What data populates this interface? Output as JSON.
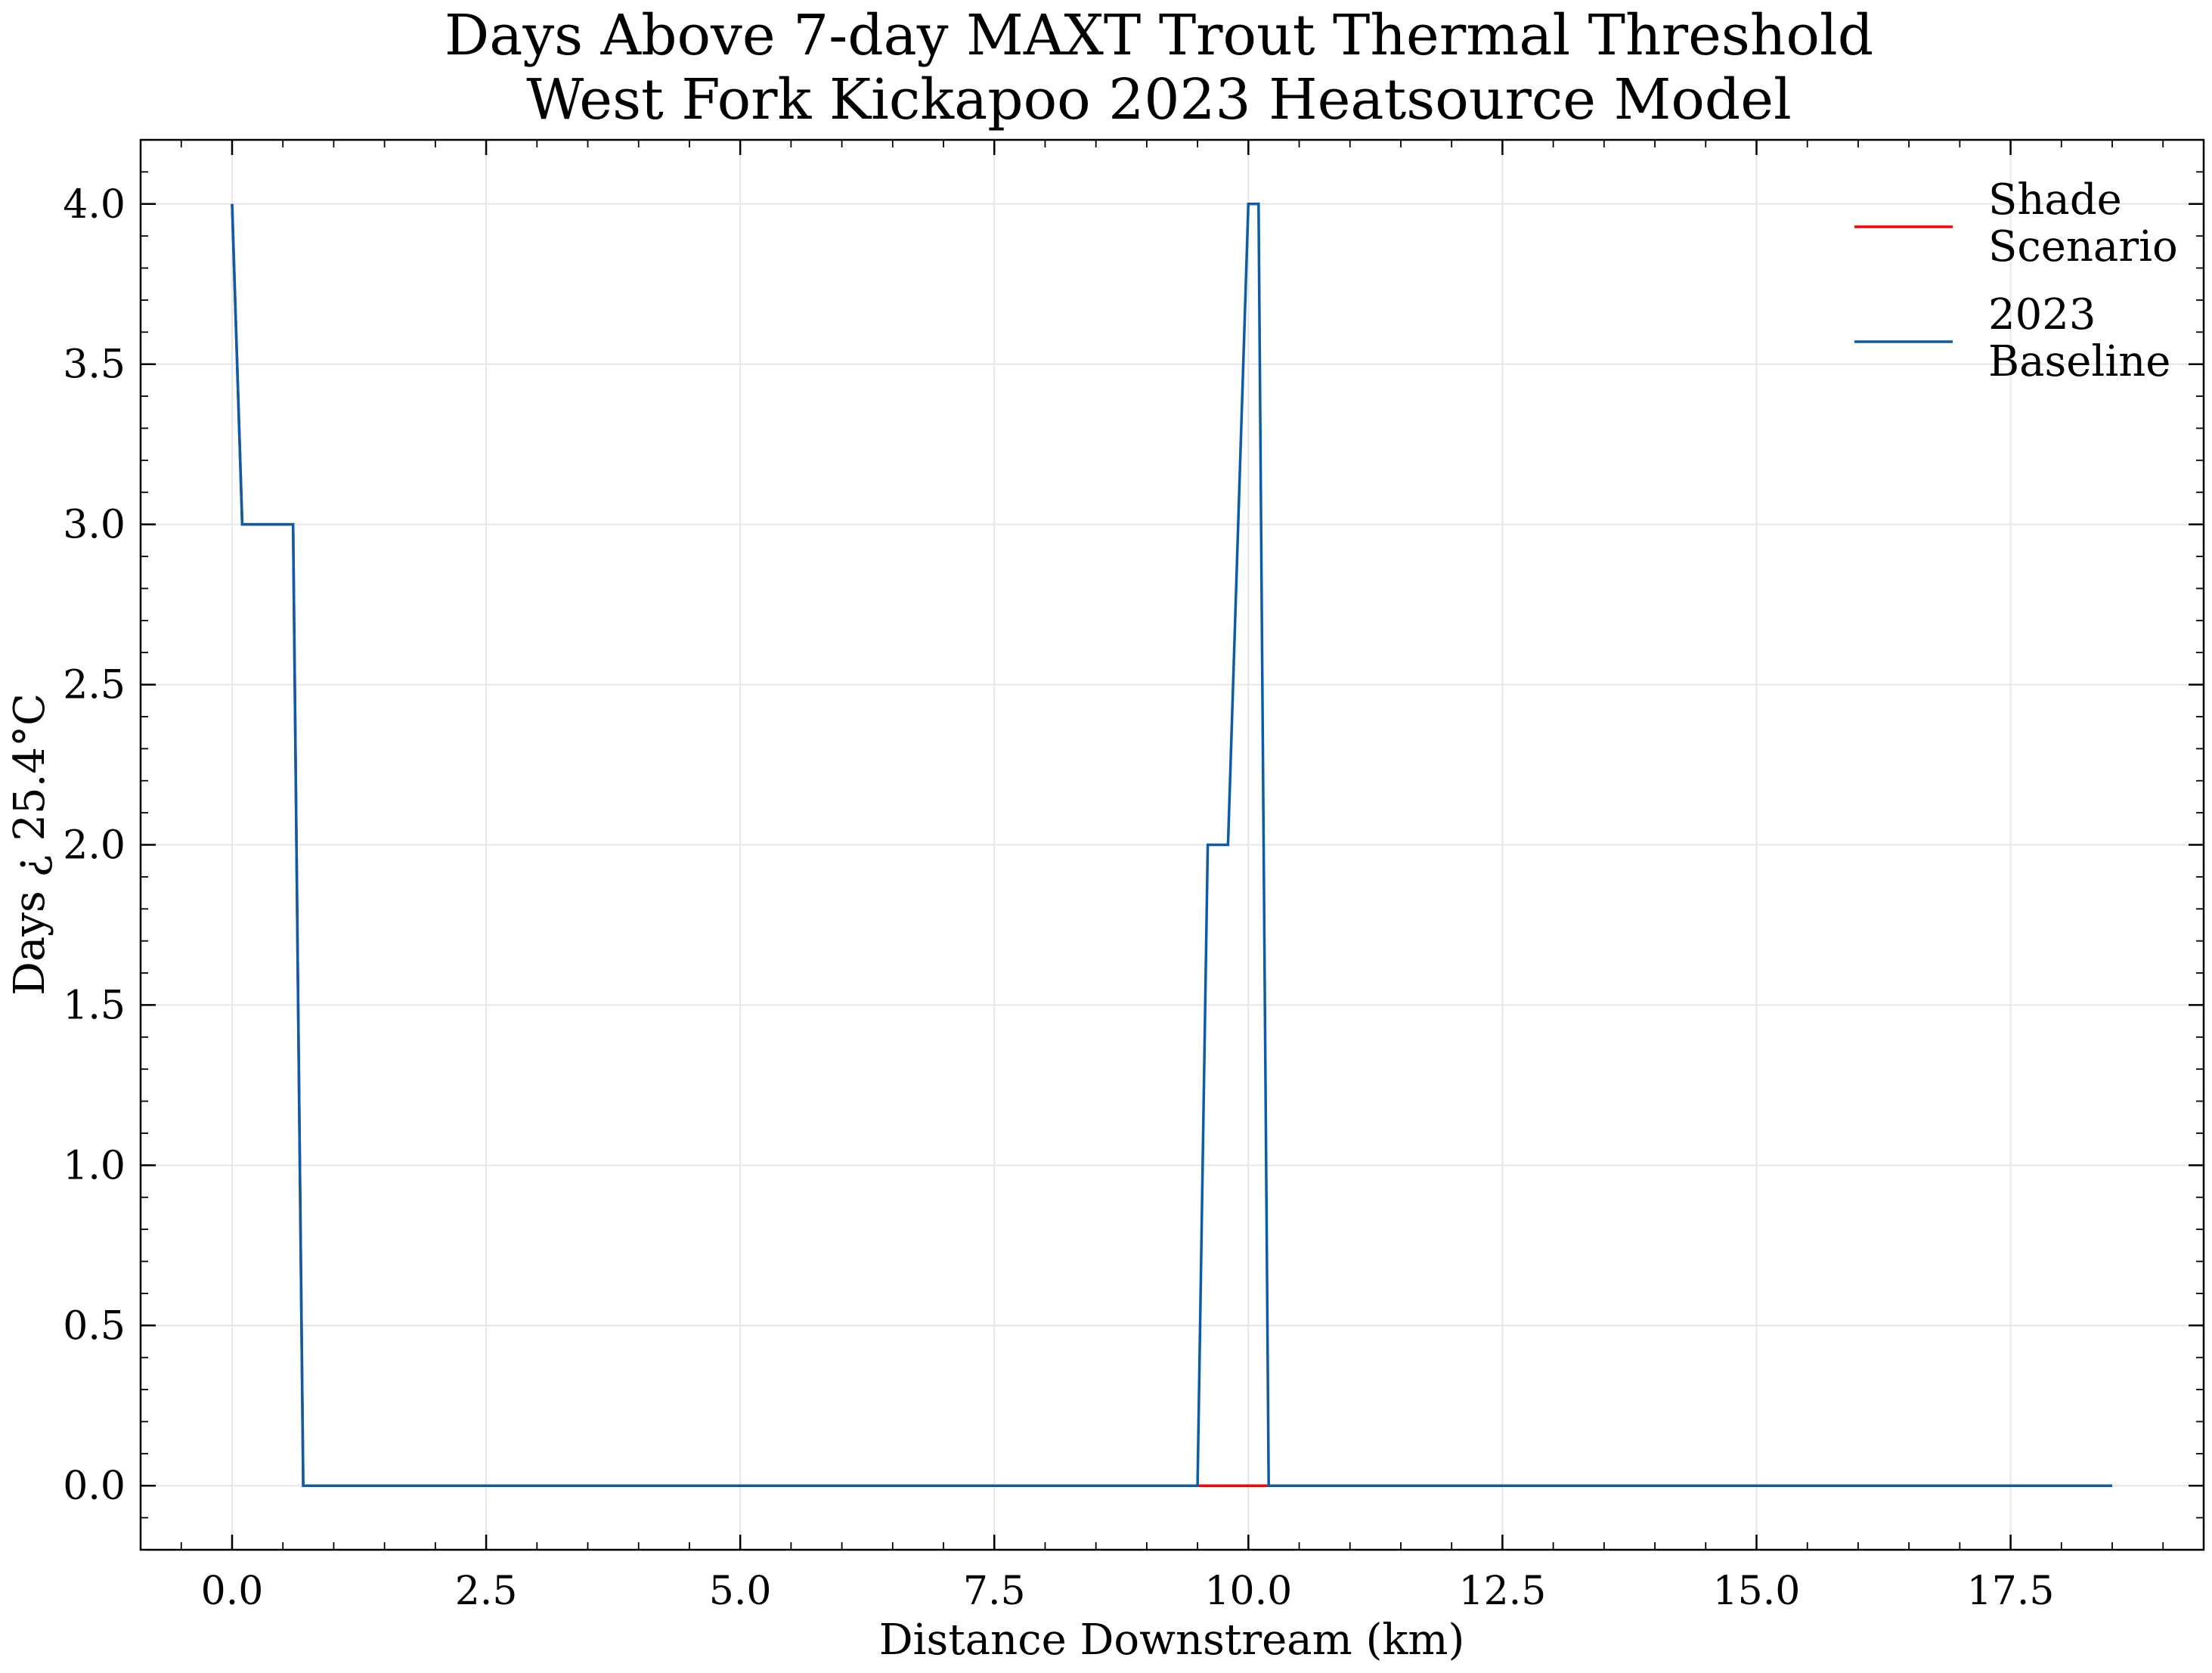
{
  "chart_data": {
    "type": "line",
    "title": "Days Above 7-day MAXT Trout Thermal Threshold",
    "subtitle": "West Fork Kickapoo 2023 Heatsource Model",
    "xlabel": "Distance Downstream (km)",
    "ylabel": "Days ¿ 25.4°C",
    "xlim": [
      -0.9,
      19.4
    ],
    "ylim": [
      -0.2,
      4.2
    ],
    "xticks": [
      0.0,
      2.5,
      5.0,
      7.5,
      10.0,
      12.5,
      15.0,
      17.5
    ],
    "xtick_labels": [
      "0.0",
      "2.5",
      "5.0",
      "7.5",
      "10.0",
      "12.5",
      "15.0",
      "17.5"
    ],
    "yticks": [
      0.0,
      0.5,
      1.0,
      1.5,
      2.0,
      2.5,
      3.0,
      3.5,
      4.0
    ],
    "ytick_labels": [
      "0.0",
      "0.5",
      "1.0",
      "1.5",
      "2.0",
      "2.5",
      "3.0",
      "3.5",
      "4.0"
    ],
    "grid": true,
    "legend_position": "top-right",
    "series": [
      {
        "name": "Shade Scenario",
        "color": "#ff0000",
        "x": [
          0.0,
          0.1,
          0.6,
          0.7,
          9.5,
          10.2,
          18.5
        ],
        "y": [
          4,
          3,
          3,
          0,
          0,
          0,
          0
        ]
      },
      {
        "name": "2023 Baseline",
        "color": "#0c5da5",
        "x": [
          0.0,
          0.1,
          0.6,
          0.7,
          9.5,
          9.6,
          9.8,
          10.0,
          10.1,
          10.2,
          18.5
        ],
        "y": [
          4,
          3,
          3,
          0,
          0,
          2,
          2,
          4,
          4,
          0,
          0
        ]
      }
    ],
    "legend": {
      "entries": [
        {
          "line1": "Shade",
          "line2": "Scenario",
          "color": "#ff0000"
        },
        {
          "line1": "2023",
          "line2": "Baseline",
          "color": "#0c5da5"
        }
      ]
    }
  }
}
